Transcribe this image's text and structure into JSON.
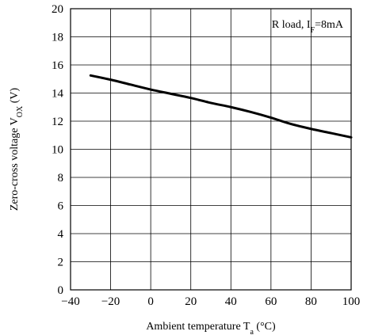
{
  "chart_data": {
    "type": "line",
    "title": "",
    "xlabel": {
      "main": "Ambient temperature T",
      "sub": "a",
      "unit": " (°C)"
    },
    "ylabel": {
      "main": "Zero-cross voltage V",
      "sub": "OX",
      "unit": " (V)"
    },
    "annotation": {
      "main": "R load, I",
      "sub": "F",
      "rest": "=8mA"
    },
    "xlim": [
      -40,
      100
    ],
    "ylim": [
      0,
      20
    ],
    "xticks": [
      -40,
      -20,
      0,
      20,
      40,
      60,
      80,
      100
    ],
    "xtick_labels": [
      "−40",
      "−20",
      "0",
      "20",
      "40",
      "60",
      "80",
      "100"
    ],
    "yticks": [
      0,
      2,
      4,
      6,
      8,
      10,
      12,
      14,
      16,
      18,
      20
    ],
    "yticks_labels": [
      "0",
      "2",
      "4",
      "6",
      "8",
      "10",
      "12",
      "14",
      "16",
      "18",
      "20"
    ],
    "grid": true,
    "series": [
      {
        "color": "#000000",
        "x": [
          -30,
          -20,
          -10,
          0,
          10,
          20,
          30,
          40,
          50,
          60,
          70,
          80,
          90,
          100
        ],
        "y": [
          15.25,
          14.95,
          14.6,
          14.25,
          13.95,
          13.65,
          13.3,
          13.0,
          12.65,
          12.25,
          11.8,
          11.45,
          11.15,
          10.85
        ]
      }
    ]
  }
}
